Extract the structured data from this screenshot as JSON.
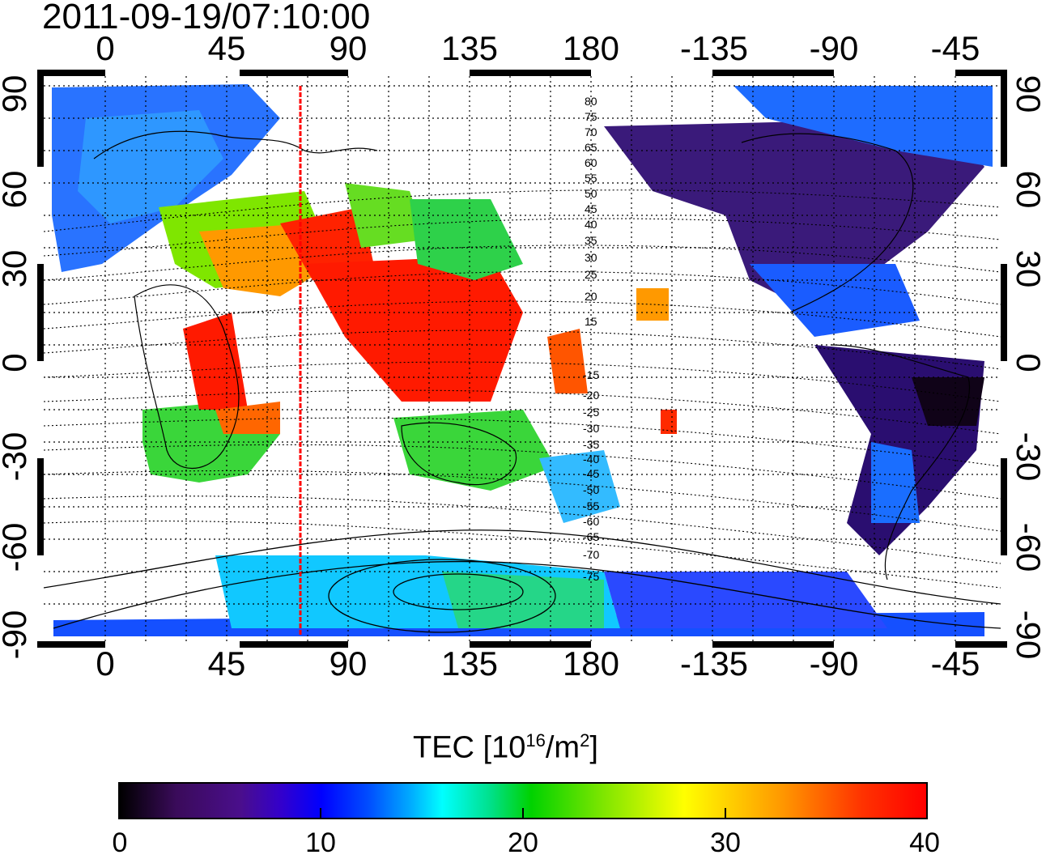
{
  "timestamp": "2011-09-19/07:10:00",
  "colorbar": {
    "title_main": "TEC  [10",
    "title_sup1": "16",
    "title_mid": "/m",
    "title_sup2": "2",
    "title_end": "]",
    "ticks": [
      "0",
      "10",
      "20",
      "30",
      "40"
    ],
    "range": [
      0,
      40
    ],
    "colors": [
      "#000000",
      "#4a0e8c",
      "#0000ff",
      "#00ffff",
      "#00d200",
      "#ffff00",
      "#ff0000"
    ]
  },
  "axes": {
    "x_ticks_top": [
      "0",
      "45",
      "90",
      "135",
      "180",
      "-135",
      "-90",
      "-45"
    ],
    "x_ticks_bottom": [
      "0",
      "45",
      "90",
      "135",
      "180",
      "-135",
      "-90",
      "-45"
    ],
    "y_ticks_left": [
      "90",
      "60",
      "30",
      "0",
      "-30",
      "-60",
      "-90"
    ],
    "y_ticks_right": [
      "90",
      "60",
      "30",
      "0",
      "-30",
      "-60",
      "-90"
    ],
    "lon_range": [
      -20,
      330
    ],
    "lat_range": [
      -90,
      90
    ],
    "grid": true
  },
  "magnetic_latitude_labels": [
    "80",
    "75",
    "70",
    "65",
    "60",
    "55",
    "50",
    "45",
    "40",
    "35",
    "30",
    "25",
    "20",
    "15",
    "-15",
    "-20",
    "-25",
    "-30",
    "-35",
    "-40",
    "-45",
    "-50",
    "-55",
    "-60",
    "-65",
    "-70",
    "-75"
  ],
  "marker_line_lon": 73
}
